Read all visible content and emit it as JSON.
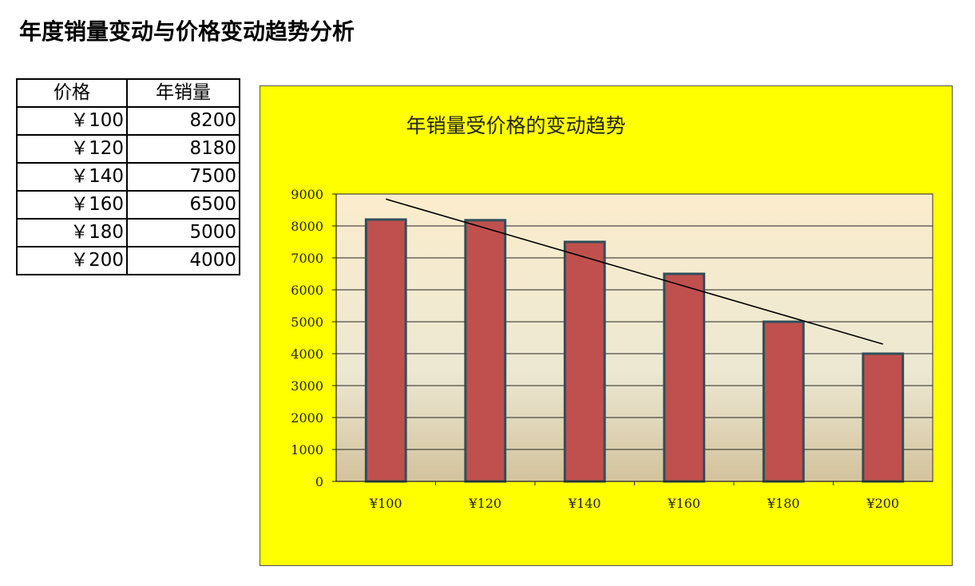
{
  "page": {
    "title": "年度销量变动与价格变动趋势分析"
  },
  "table": {
    "headers": [
      "价格",
      "年销量"
    ],
    "rows": [
      [
        "￥100",
        "8200"
      ],
      [
        "￥120",
        "8180"
      ],
      [
        "￥140",
        "7500"
      ],
      [
        "￥160",
        "6500"
      ],
      [
        "￥180",
        "5000"
      ],
      [
        "￥200",
        "4000"
      ]
    ]
  },
  "chart_data": {
    "type": "bar",
    "title": "年销量受价格的变动趋势",
    "categories": [
      "¥100",
      "¥120",
      "¥140",
      "¥160",
      "¥180",
      "¥200"
    ],
    "series": [
      {
        "values": [
          8200,
          8180,
          7500,
          6500,
          5000,
          4000
        ],
        "color": "#c0504d"
      }
    ],
    "trendline": {
      "type": "linear",
      "start": 8840,
      "end": 4300
    },
    "ylim": [
      0,
      9000
    ],
    "yticks": [
      0,
      1000,
      2000,
      3000,
      4000,
      5000,
      6000,
      7000,
      8000,
      9000
    ],
    "grid": true,
    "legend": "none",
    "background_color": "#ffff00",
    "plot_gradient": [
      "#fbeccc",
      "#ece8d2",
      "#d3c29c"
    ]
  }
}
